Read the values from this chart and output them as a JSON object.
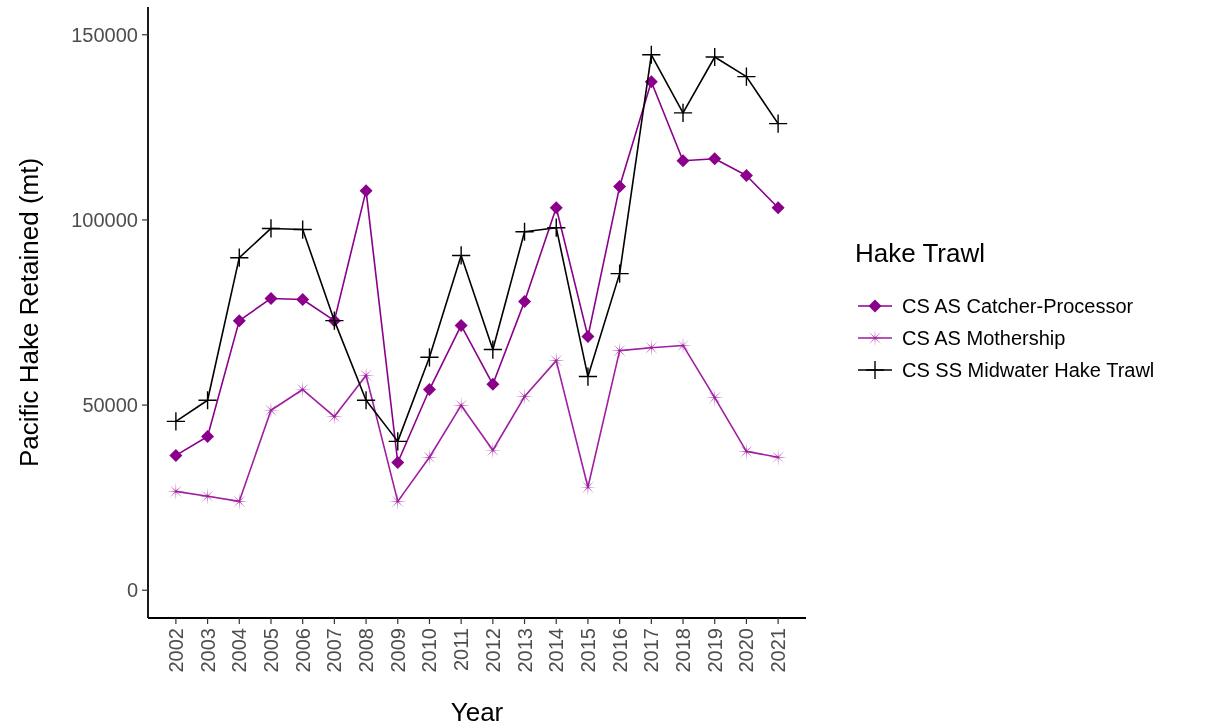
{
  "chart_data": {
    "type": "line",
    "xlabel": "Year",
    "ylabel": "Pacific Hake Retained (mt)",
    "legend_title": "Hake Trawl",
    "legend": "right",
    "grid": false,
    "categories": [
      "2002",
      "2003",
      "2004",
      "2005",
      "2006",
      "2007",
      "2008",
      "2009",
      "2010",
      "2011",
      "2012",
      "2013",
      "2014",
      "2015",
      "2016",
      "2017",
      "2018",
      "2019",
      "2020",
      "2021"
    ],
    "ylim": [
      -7500,
      157500
    ],
    "yticks": [
      0,
      50000,
      100000,
      150000
    ],
    "series": [
      {
        "name": "CS AS Catcher-Processor",
        "color": "#8b008b",
        "marker": "diamond",
        "values": [
          36400,
          41500,
          72800,
          78800,
          78500,
          72800,
          107900,
          34500,
          54200,
          71500,
          55600,
          78000,
          103300,
          68500,
          109000,
          137300,
          116000,
          116500,
          112000,
          103300
        ]
      },
      {
        "name": "CS AS Mothership",
        "color": "#a01ea0",
        "marker": "star",
        "values": [
          26700,
          25400,
          24000,
          48600,
          54200,
          46900,
          58000,
          24000,
          35900,
          49900,
          37800,
          52300,
          62000,
          27800,
          64700,
          65500,
          66100,
          52000,
          37500,
          35900
        ]
      },
      {
        "name": "CS SS Midwater Hake Trawl",
        "color": "#000000",
        "marker": "cross",
        "values": [
          45600,
          51300,
          89800,
          97700,
          97400,
          72800,
          51300,
          40200,
          62900,
          90400,
          65000,
          96800,
          97900,
          57700,
          85500,
          144600,
          128900,
          144000,
          138700,
          126000
        ]
      }
    ]
  }
}
